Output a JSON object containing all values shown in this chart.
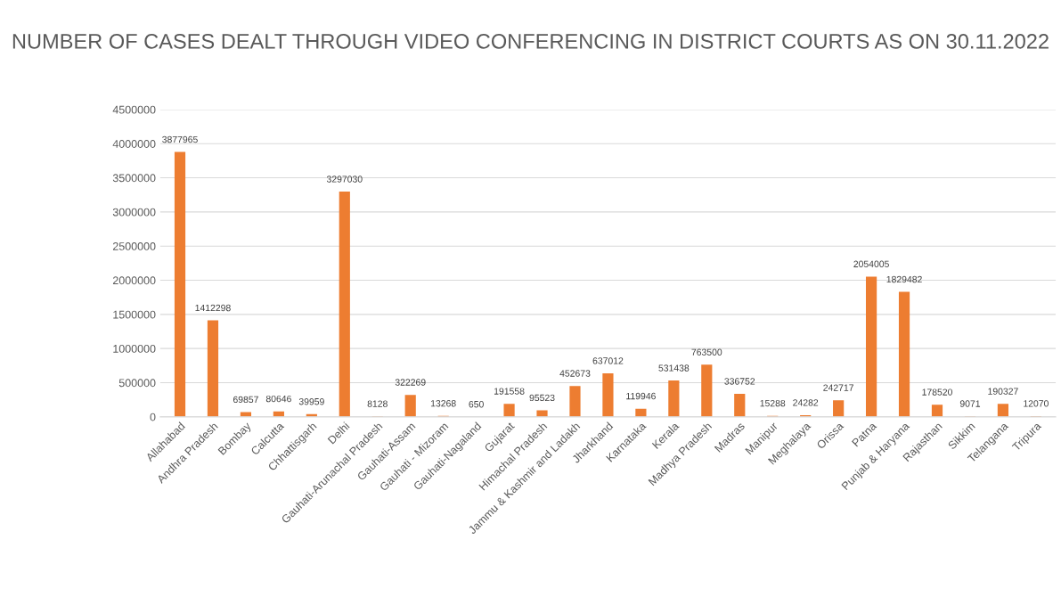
{
  "chart_data": {
    "type": "bar",
    "title": "NUMBER OF CASES DEALT THROUGH VIDEO CONFERENCING IN DISTRICT COURTS AS ON 30.11.2022",
    "categories": [
      "Allahabad",
      "Andhra Pradesh",
      "Bombay",
      "Calcutta",
      "Chhattisgarh",
      "Delhi",
      "Gauhati-Arunachal Pradesh",
      "Gauhati-Assam",
      "Gauhati - Mizoram",
      "Gauhati-Nagaland",
      "Gujarat",
      "Himachal Pradesh",
      "Jammu & Kashmir and Ladakh",
      "Jharkhand",
      "Karnataka",
      "Kerala",
      "Madhya Pradesh",
      "Madras",
      "Manipur",
      "Meghalaya",
      "Orissa",
      "Patna",
      "Punjab & Haryana",
      "Rajasthan",
      "Sikkim",
      "Telangana",
      "Tripura"
    ],
    "values": [
      3877965,
      1412298,
      69857,
      80646,
      39959,
      3297030,
      8128,
      322269,
      13268,
      650,
      191558,
      95523,
      452673,
      637012,
      119946,
      531438,
      763500,
      336752,
      15288,
      24282,
      242717,
      2054005,
      1829482,
      178520,
      9071,
      190327,
      12070
    ],
    "color": "#ed7d31",
    "data_labels": true,
    "grid": "y",
    "ylim": [
      0,
      4500000
    ],
    "yticks": [
      0,
      500000,
      1000000,
      1500000,
      2000000,
      2500000,
      3000000,
      3500000,
      4000000,
      4500000
    ]
  }
}
